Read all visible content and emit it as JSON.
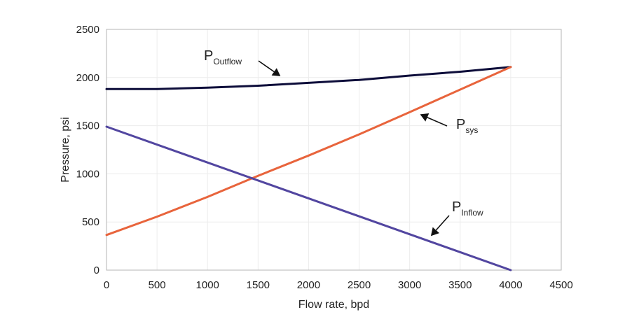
{
  "chart_data": {
    "type": "line",
    "title": "",
    "xlabel": "Flow rate, bpd",
    "ylabel": "Pressure, psi",
    "xlim": [
      0,
      4500
    ],
    "ylim": [
      0,
      2500
    ],
    "xticks": [
      0,
      500,
      1000,
      1500,
      2000,
      2500,
      3000,
      3500,
      4000,
      4500
    ],
    "yticks": [
      0,
      500,
      1000,
      1500,
      2000,
      2500
    ],
    "grid": true,
    "legend": "none",
    "series": [
      {
        "name": "Outflow",
        "color": "#0d0d3a",
        "x": [
          0,
          500,
          1000,
          1500,
          2000,
          2500,
          3000,
          3500,
          4000
        ],
        "y": [
          1880,
          1880,
          1895,
          1915,
          1945,
          1975,
          2020,
          2060,
          2110
        ]
      },
      {
        "name": "sys",
        "color": "#e8643c",
        "x": [
          0,
          500,
          1000,
          1500,
          2000,
          2500,
          3000,
          3500,
          4000
        ],
        "y": [
          365,
          555,
          760,
          980,
          1190,
          1410,
          1640,
          1875,
          2110
        ]
      },
      {
        "name": "Inflow",
        "color": "#5246a0",
        "x": [
          0,
          4000
        ],
        "y": [
          1490,
          0
        ]
      }
    ],
    "annotations": [
      {
        "main": "P",
        "sub": "Outflow",
        "series": "Outflow"
      },
      {
        "main": "P",
        "sub": "sys",
        "series": "sys"
      },
      {
        "main": "P",
        "sub": "Inflow",
        "series": "Inflow"
      }
    ]
  }
}
